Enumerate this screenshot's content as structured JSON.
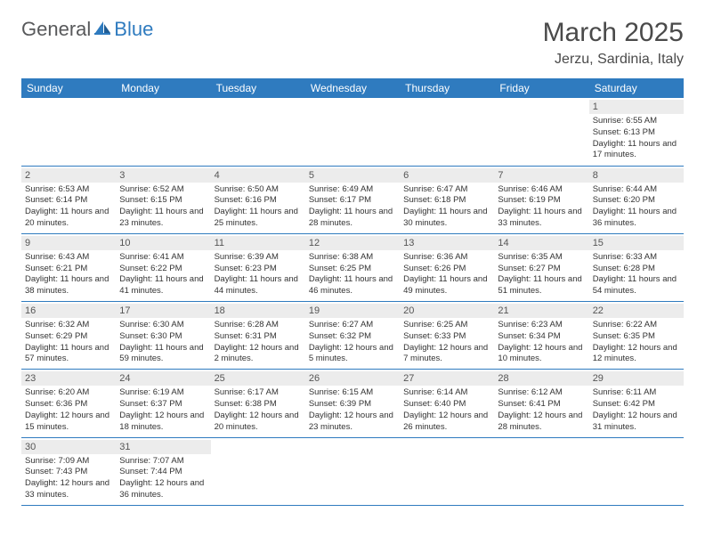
{
  "logo": {
    "part1": "General",
    "part2": "Blue"
  },
  "title": "March 2025",
  "location": "Jerzu, Sardinia, Italy",
  "colors": {
    "accent": "#2f7bbf",
    "dayHeaderBg": "#ececec",
    "text": "#333333",
    "logoGray": "#58595b"
  },
  "weekdays": [
    "Sunday",
    "Monday",
    "Tuesday",
    "Wednesday",
    "Thursday",
    "Friday",
    "Saturday"
  ],
  "startOffset": 6,
  "days": [
    {
      "n": 1,
      "sunrise": "6:55 AM",
      "sunset": "6:13 PM",
      "daylight": "11 hours and 17 minutes."
    },
    {
      "n": 2,
      "sunrise": "6:53 AM",
      "sunset": "6:14 PM",
      "daylight": "11 hours and 20 minutes."
    },
    {
      "n": 3,
      "sunrise": "6:52 AM",
      "sunset": "6:15 PM",
      "daylight": "11 hours and 23 minutes."
    },
    {
      "n": 4,
      "sunrise": "6:50 AM",
      "sunset": "6:16 PM",
      "daylight": "11 hours and 25 minutes."
    },
    {
      "n": 5,
      "sunrise": "6:49 AM",
      "sunset": "6:17 PM",
      "daylight": "11 hours and 28 minutes."
    },
    {
      "n": 6,
      "sunrise": "6:47 AM",
      "sunset": "6:18 PM",
      "daylight": "11 hours and 30 minutes."
    },
    {
      "n": 7,
      "sunrise": "6:46 AM",
      "sunset": "6:19 PM",
      "daylight": "11 hours and 33 minutes."
    },
    {
      "n": 8,
      "sunrise": "6:44 AM",
      "sunset": "6:20 PM",
      "daylight": "11 hours and 36 minutes."
    },
    {
      "n": 9,
      "sunrise": "6:43 AM",
      "sunset": "6:21 PM",
      "daylight": "11 hours and 38 minutes."
    },
    {
      "n": 10,
      "sunrise": "6:41 AM",
      "sunset": "6:22 PM",
      "daylight": "11 hours and 41 minutes."
    },
    {
      "n": 11,
      "sunrise": "6:39 AM",
      "sunset": "6:23 PM",
      "daylight": "11 hours and 44 minutes."
    },
    {
      "n": 12,
      "sunrise": "6:38 AM",
      "sunset": "6:25 PM",
      "daylight": "11 hours and 46 minutes."
    },
    {
      "n": 13,
      "sunrise": "6:36 AM",
      "sunset": "6:26 PM",
      "daylight": "11 hours and 49 minutes."
    },
    {
      "n": 14,
      "sunrise": "6:35 AM",
      "sunset": "6:27 PM",
      "daylight": "11 hours and 51 minutes."
    },
    {
      "n": 15,
      "sunrise": "6:33 AM",
      "sunset": "6:28 PM",
      "daylight": "11 hours and 54 minutes."
    },
    {
      "n": 16,
      "sunrise": "6:32 AM",
      "sunset": "6:29 PM",
      "daylight": "11 hours and 57 minutes."
    },
    {
      "n": 17,
      "sunrise": "6:30 AM",
      "sunset": "6:30 PM",
      "daylight": "11 hours and 59 minutes."
    },
    {
      "n": 18,
      "sunrise": "6:28 AM",
      "sunset": "6:31 PM",
      "daylight": "12 hours and 2 minutes."
    },
    {
      "n": 19,
      "sunrise": "6:27 AM",
      "sunset": "6:32 PM",
      "daylight": "12 hours and 5 minutes."
    },
    {
      "n": 20,
      "sunrise": "6:25 AM",
      "sunset": "6:33 PM",
      "daylight": "12 hours and 7 minutes."
    },
    {
      "n": 21,
      "sunrise": "6:23 AM",
      "sunset": "6:34 PM",
      "daylight": "12 hours and 10 minutes."
    },
    {
      "n": 22,
      "sunrise": "6:22 AM",
      "sunset": "6:35 PM",
      "daylight": "12 hours and 12 minutes."
    },
    {
      "n": 23,
      "sunrise": "6:20 AM",
      "sunset": "6:36 PM",
      "daylight": "12 hours and 15 minutes."
    },
    {
      "n": 24,
      "sunrise": "6:19 AM",
      "sunset": "6:37 PM",
      "daylight": "12 hours and 18 minutes."
    },
    {
      "n": 25,
      "sunrise": "6:17 AM",
      "sunset": "6:38 PM",
      "daylight": "12 hours and 20 minutes."
    },
    {
      "n": 26,
      "sunrise": "6:15 AM",
      "sunset": "6:39 PM",
      "daylight": "12 hours and 23 minutes."
    },
    {
      "n": 27,
      "sunrise": "6:14 AM",
      "sunset": "6:40 PM",
      "daylight": "12 hours and 26 minutes."
    },
    {
      "n": 28,
      "sunrise": "6:12 AM",
      "sunset": "6:41 PM",
      "daylight": "12 hours and 28 minutes."
    },
    {
      "n": 29,
      "sunrise": "6:11 AM",
      "sunset": "6:42 PM",
      "daylight": "12 hours and 31 minutes."
    },
    {
      "n": 30,
      "sunrise": "7:09 AM",
      "sunset": "7:43 PM",
      "daylight": "12 hours and 33 minutes."
    },
    {
      "n": 31,
      "sunrise": "7:07 AM",
      "sunset": "7:44 PM",
      "daylight": "12 hours and 36 minutes."
    }
  ],
  "labels": {
    "sunrise": "Sunrise:",
    "sunset": "Sunset:",
    "daylight": "Daylight:"
  }
}
